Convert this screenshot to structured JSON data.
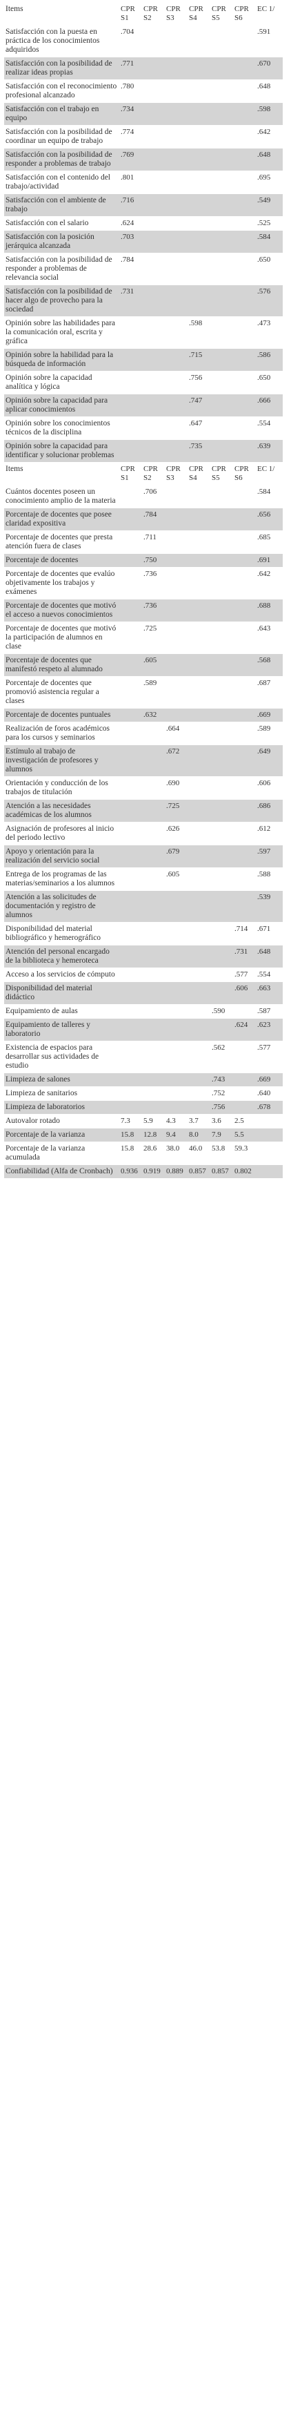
{
  "tables": [
    {
      "header": [
        "Items",
        "CPR S1",
        "CPR S2",
        "CPR S3",
        "CPR S4",
        "CPR S5",
        "CPR S6",
        "EC 1/"
      ],
      "rows": [
        [
          "Satisfacción con la puesta en práctica de los conocimientos adquiridos",
          ".704",
          null,
          null,
          null,
          null,
          null,
          ".591"
        ],
        [
          "Satisfacción con la posibilidad de realizar ideas propias",
          ".771",
          null,
          null,
          null,
          null,
          null,
          ".670"
        ],
        [
          "Satisfacción con el reconocimiento profesional alcanzado",
          ".780",
          null,
          null,
          null,
          null,
          null,
          ".648"
        ],
        [
          "Satisfacción con el trabajo en equipo",
          ".734",
          null,
          null,
          null,
          null,
          null,
          ".598"
        ],
        [
          "Satisfacción con la posibilidad de coordinar un equipo de trabajo",
          ".774",
          null,
          null,
          null,
          null,
          null,
          ".642"
        ],
        [
          "Satisfacción con la posibilidad de responder a problemas de trabajo",
          ".769",
          null,
          null,
          null,
          null,
          null,
          ".648"
        ],
        [
          "Satisfacción con el contenido del trabajo/actividad",
          ".801",
          null,
          null,
          null,
          null,
          null,
          ".695"
        ],
        [
          "Satisfacción con el ambiente de trabajo",
          ".716",
          null,
          null,
          null,
          null,
          null,
          ".549"
        ],
        [
          "Satisfacción con el salario",
          ".624",
          null,
          null,
          null,
          null,
          null,
          ".525"
        ],
        [
          "Satisfacción con la posición jerárquica alcanzada",
          ".703",
          null,
          null,
          null,
          null,
          null,
          ".584"
        ],
        [
          "Satisfacción con la posibilidad de responder a problemas de relevancia social",
          ".784",
          null,
          null,
          null,
          null,
          null,
          ".650"
        ],
        [
          "Satisfacción con la posibilidad de hacer algo de provecho para la sociedad",
          ".731",
          null,
          null,
          null,
          null,
          null,
          ".576"
        ],
        [
          "Opinión sobre las habilidades para la comunicación oral, escrita y gráfica",
          null,
          null,
          null,
          ".598",
          null,
          null,
          ".473"
        ],
        [
          "Opinión sobre la habilidad para la búsqueda de información",
          null,
          null,
          null,
          ".715",
          null,
          null,
          ".586"
        ],
        [
          "Opinión sobre la capacidad analítica y lógica",
          null,
          null,
          null,
          ".756",
          null,
          null,
          ".650"
        ],
        [
          "Opinión sobre la capacidad para aplicar conocimientos",
          null,
          null,
          null,
          ".747",
          null,
          null,
          ".666"
        ],
        [
          "Opinión sobre los conocimientos técnicos de la disciplina",
          null,
          null,
          null,
          ".647",
          null,
          null,
          ".554"
        ],
        [
          "Opinión sobre la capacidad para identificar y solucionar problemas",
          null,
          null,
          null,
          ".735",
          null,
          null,
          ".639"
        ]
      ]
    },
    {
      "header": [
        "Items",
        "CPR S1",
        "CPR S2",
        "CPR S3",
        "CPR S4",
        "CPR S5",
        "CPR S6",
        "EC 1/"
      ],
      "rows": [
        [
          "Cuántos docentes poseen un conocimiento amplio de la materia",
          null,
          ".706",
          null,
          null,
          null,
          null,
          ".584"
        ],
        [
          "Porcentaje de docentes que posee claridad expositiva",
          null,
          ".784",
          null,
          null,
          null,
          null,
          ".656"
        ],
        [
          "Porcentaje de docentes que presta atención fuera de clases",
          null,
          ".711",
          null,
          null,
          null,
          null,
          ".685"
        ],
        [
          "Porcentaje de docentes",
          null,
          ".750",
          null,
          null,
          null,
          null,
          ".691"
        ],
        [
          "Porcentaje de docentes que evalúo objetivamente los trabajos y exámenes",
          null,
          ".736",
          null,
          null,
          null,
          null,
          ".642"
        ],
        [
          "Porcentaje de docentes que motivó el acceso a nuevos conocimientos",
          null,
          ".736",
          null,
          null,
          null,
          null,
          ".688"
        ],
        [
          "Porcentaje de docentes que motivó la participación de alumnos en clase",
          null,
          ".725",
          null,
          null,
          null,
          null,
          ".643"
        ],
        [
          "Porcentaje de docentes que manifestó respeto al alumnado",
          null,
          ".605",
          null,
          null,
          null,
          null,
          ".568"
        ],
        [
          "Porcentaje de docentes que promovió asistencia regular a clases",
          null,
          ".589",
          null,
          null,
          null,
          null,
          ".687"
        ],
        [
          "Porcentaje de docentes puntuales",
          null,
          ".632",
          null,
          null,
          null,
          null,
          ".669"
        ],
        [
          "Realización de foros académicos para los cursos y seminarios",
          null,
          null,
          ".664",
          null,
          null,
          null,
          ".589"
        ],
        [
          "Estímulo al trabajo de investigación de profesores y alumnos",
          null,
          null,
          ".672",
          null,
          null,
          null,
          ".649"
        ],
        [
          "Orientación y conducción de los trabajos de titulación",
          null,
          null,
          ".690",
          null,
          null,
          null,
          ".606"
        ],
        [
          "Atención a las necesidades académicas de los alumnos",
          null,
          null,
          ".725",
          null,
          null,
          null,
          ".686"
        ],
        [
          "Asignación de profesores al inicio del periodo lectivo",
          null,
          null,
          ".626",
          null,
          null,
          null,
          ".612"
        ],
        [
          "Apoyo y orientación para la realización del servicio social",
          null,
          null,
          ".679",
          null,
          null,
          null,
          ".597"
        ],
        [
          "Entrega de los programas de las materias/seminarios a los alumnos",
          null,
          null,
          ".605",
          null,
          null,
          null,
          ".588"
        ],
        [
          "Atención a las solicitudes de documentación y registro de alumnos",
          null,
          null,
          null,
          null,
          null,
          null,
          ".539"
        ],
        [
          "Disponibilidad del material bibliográfico y hemerográfico",
          null,
          null,
          null,
          null,
          null,
          ".714",
          ".671"
        ],
        [
          "Atención del personal encargado de la biblioteca y hemeroteca",
          null,
          null,
          null,
          null,
          null,
          ".731",
          ".648"
        ],
        [
          "Acceso a los servicios de cómputo",
          null,
          null,
          null,
          null,
          null,
          ".577",
          ".554"
        ],
        [
          "Disponibilidad del material didáctico",
          null,
          null,
          null,
          null,
          null,
          ".606",
          ".663"
        ],
        [
          "Equipamiento de aulas",
          null,
          null,
          null,
          null,
          ".590",
          null,
          ".587"
        ],
        [
          "Equipamiento de talleres y laboratorio",
          null,
          null,
          null,
          null,
          null,
          ".624",
          ".623"
        ],
        [
          "Existencia de espacios para desarrollar sus actividades de estudio",
          null,
          null,
          null,
          null,
          ".562",
          null,
          ".577"
        ],
        [
          "Limpieza de salones",
          null,
          null,
          null,
          null,
          ".743",
          null,
          ".669"
        ],
        [
          "Limpieza de sanitarios",
          null,
          null,
          null,
          null,
          ".752",
          null,
          ".640"
        ],
        [
          "Limpieza de laboratorios",
          null,
          null,
          null,
          null,
          ".756",
          null,
          ".678"
        ],
        [
          "Autovalor rotado",
          "7.3",
          "5.9",
          "4.3",
          "3.7",
          "3.6",
          "2.5",
          null
        ],
        [
          "Porcentaje de la varianza",
          "15.8",
          "12.8",
          "9.4",
          "8.0",
          "7.9",
          "5.5",
          null
        ],
        [
          "Porcentaje de la varianza acumulada",
          "15.8",
          "28.6",
          "38.0",
          "46.0",
          "53.8",
          "59.3",
          null
        ],
        [
          "Confiabilidad (Alfa de Cronbach)",
          "0.936",
          "0.919",
          "0.889",
          "0.857",
          "0.857",
          "0.802",
          null
        ]
      ]
    }
  ]
}
